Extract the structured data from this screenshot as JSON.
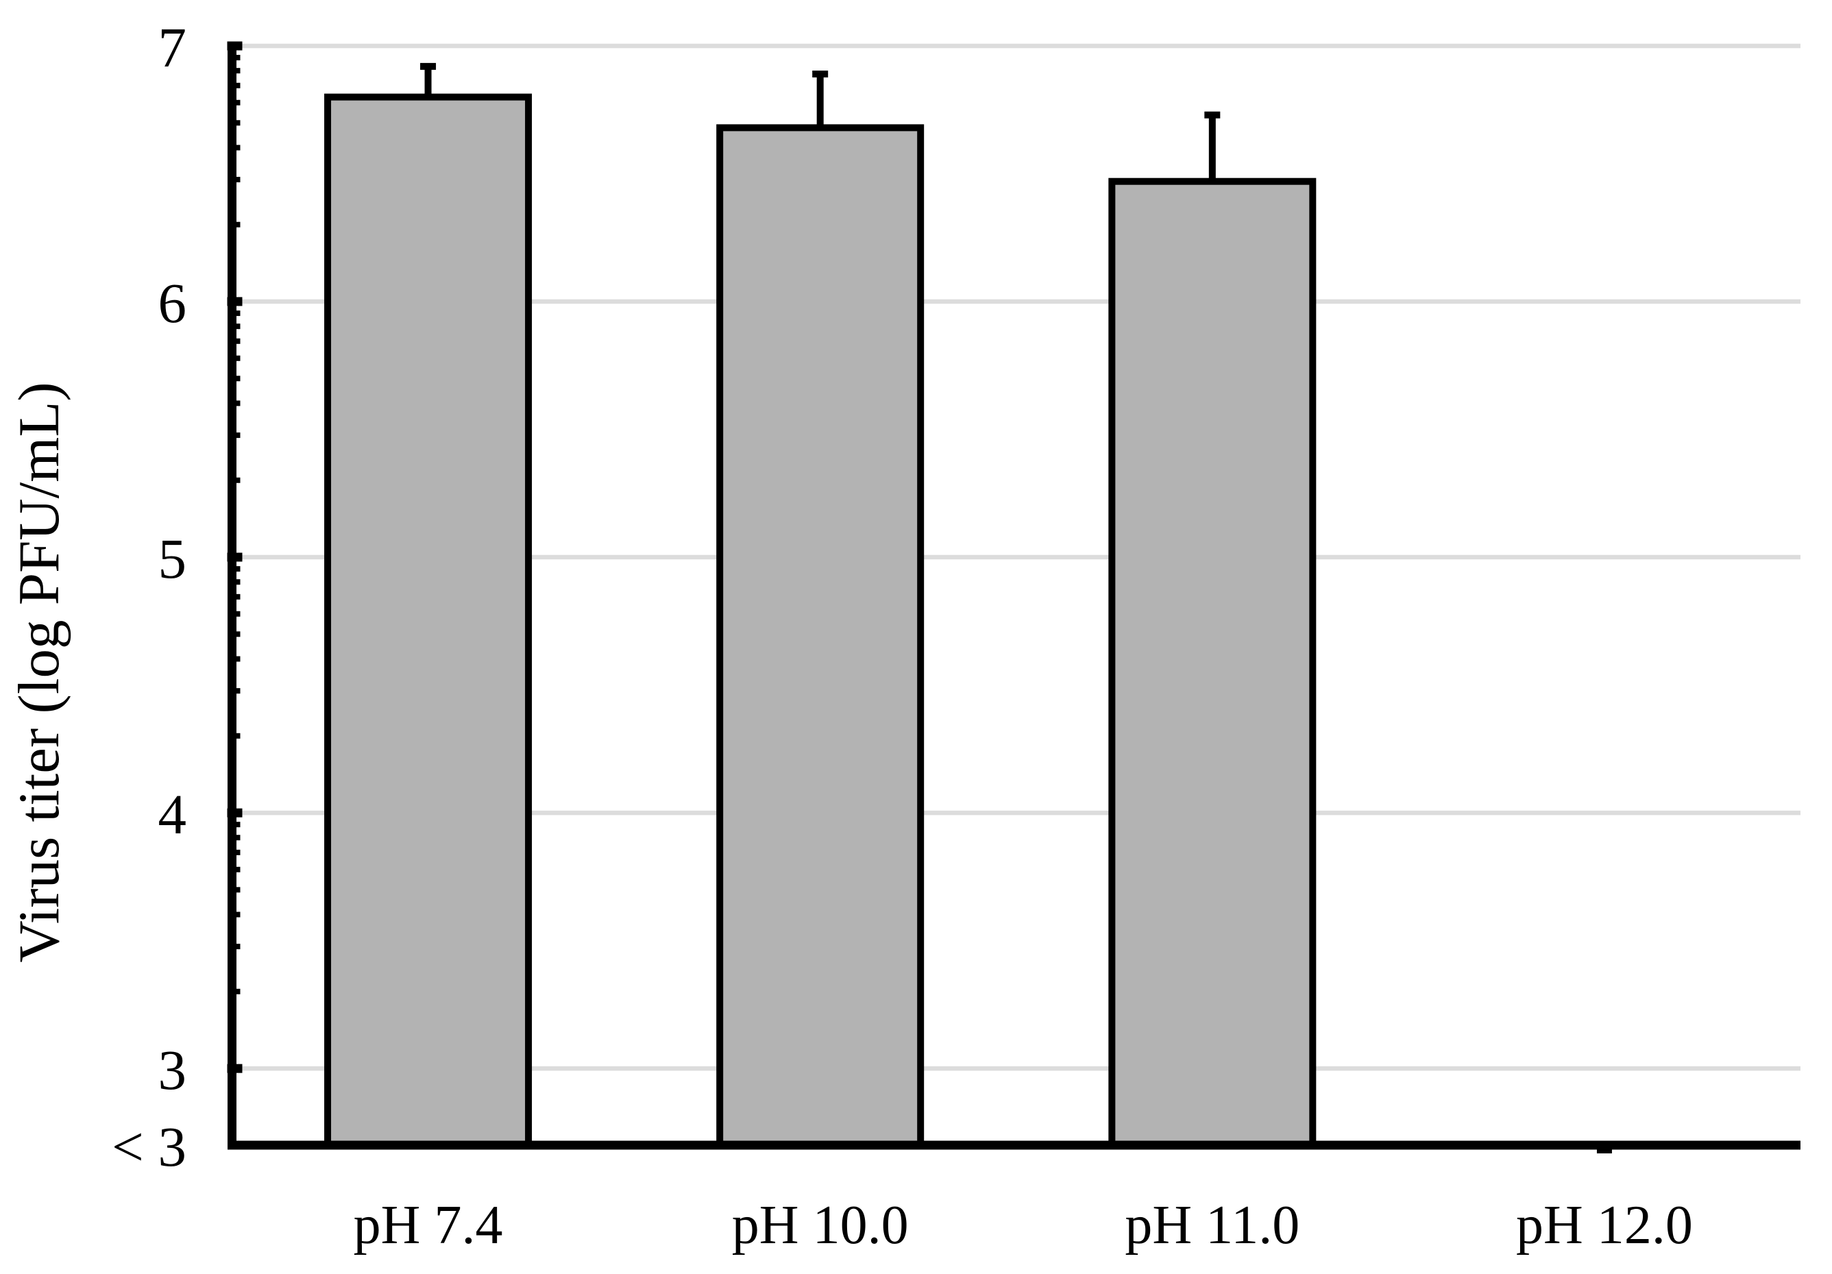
{
  "figure": {
    "description": "Bar chart of virus titer at different pH values with error bars; pH 12.0 below detection limit",
    "background": "#ffffff"
  },
  "chart_data": {
    "type": "bar",
    "title": "",
    "xlabel": "",
    "ylabel": "Virus titer (log PFU/mL)",
    "categories": [
      "pH 7.4",
      "pH 10.0",
      "pH 11.0",
      "pH 12.0"
    ],
    "series": [
      {
        "name": "Virus titer",
        "values": [
          6.8,
          6.68,
          6.47,
          null
        ],
        "errors_plus": [
          0.12,
          0.21,
          0.26,
          null
        ],
        "below_detection": [
          false,
          false,
          false,
          true
        ]
      }
    ],
    "detection_limit_label": "< 3",
    "y_axis": {
      "scale": "log10-style axis with logarithmic minor ticks (2-9) in each decade",
      "major_ticks": [
        3,
        4,
        5,
        6,
        7
      ],
      "tick_labels": [
        "3",
        "4",
        "5",
        "6",
        "7"
      ],
      "baseline_label": "< 3",
      "top_value": 7,
      "baseline_value": 2.7
    },
    "x_axis": {
      "tick_labels": [
        "pH 7.4",
        "pH 10.0",
        "pH 11.0",
        "pH 12.0"
      ]
    },
    "grid": {
      "horizontal_major_gridlines": true,
      "vertical_gridlines": false
    },
    "legend": "none",
    "colors": {
      "bar_fill": "#b3b3b3",
      "bar_border": "#000000",
      "error_bar": "#000000",
      "gridline": "#dcdcdc",
      "axis": "#000000",
      "text": "#000000",
      "background": "#ffffff"
    }
  }
}
